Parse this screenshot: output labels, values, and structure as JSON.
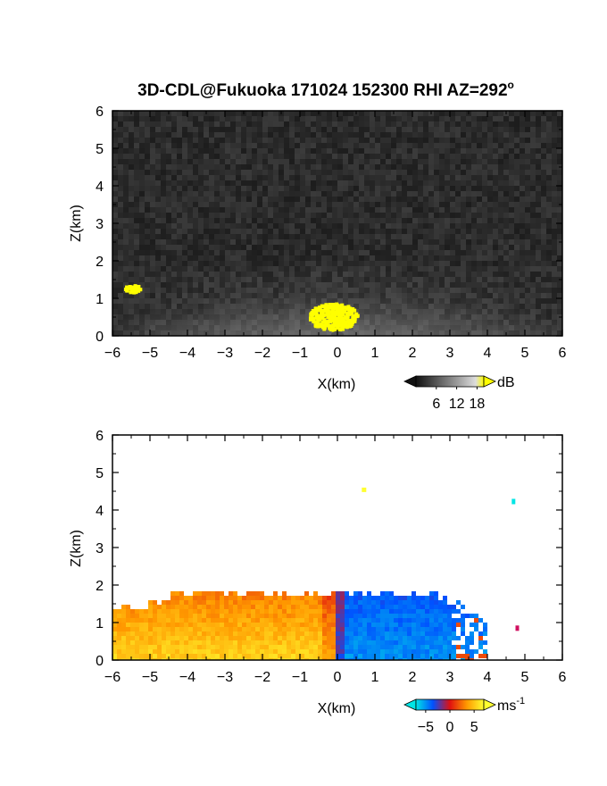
{
  "title": "3D-CDL@Fukuoka 171024 152300 RHI AZ=292",
  "title_degree": "o",
  "chart_data": [
    {
      "type": "heatmap",
      "quantity": "backscatter intensity",
      "xlabel": "X(km)",
      "ylabel": "Z(km)",
      "xlim": [
        -6,
        6
      ],
      "ylim": [
        0,
        6
      ],
      "x_ticks": [
        "-6",
        "-5",
        "-4",
        "-3",
        "-2",
        "-1",
        "0",
        "1",
        "2",
        "3",
        "4",
        "5",
        "6"
      ],
      "y_ticks": [
        "0",
        "1",
        "2",
        "3",
        "4",
        "5",
        "6"
      ],
      "colorbar": {
        "unit": "dB",
        "tick_labels": [
          "6",
          "12",
          "18"
        ],
        "range": [
          0,
          20
        ],
        "colors": [
          "#111111",
          "#555555",
          "#999999",
          "#dddddd",
          "#ffff00"
        ]
      },
      "grid": false
    },
    {
      "type": "heatmap",
      "quantity": "radial velocity",
      "xlabel": "X(km)",
      "ylabel": "Z(km)",
      "xlim": [
        -6,
        6
      ],
      "ylim": [
        0,
        6
      ],
      "x_ticks": [
        "-6",
        "-5",
        "-4",
        "-3",
        "-2",
        "-1",
        "0",
        "1",
        "2",
        "3",
        "4",
        "5",
        "6"
      ],
      "y_ticks": [
        "0",
        "1",
        "2",
        "3",
        "4",
        "5",
        "6"
      ],
      "colorbar": {
        "unit": "ms",
        "unit_exponent": "-1",
        "tick_labels": [
          "-5",
          "0",
          "5"
        ],
        "range": [
          -7,
          7
        ],
        "colors": [
          "#00e5e5",
          "#0050ff",
          "#e01010",
          "#ff9900",
          "#ffff30"
        ]
      },
      "grid": false
    }
  ]
}
